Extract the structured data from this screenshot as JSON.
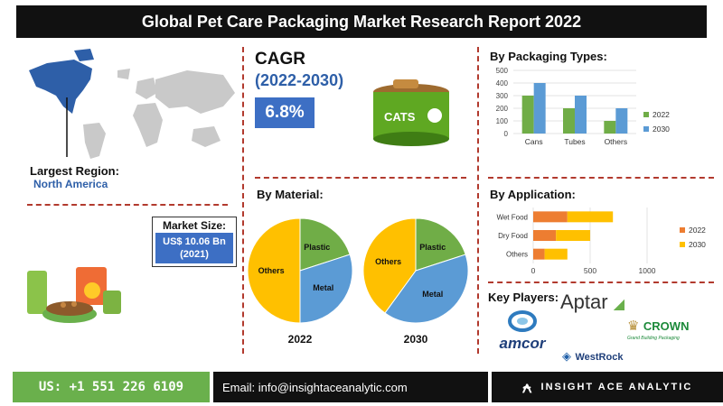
{
  "header": {
    "title": "Global Pet Care Packaging Market Research Report 2022"
  },
  "region": {
    "label": "Largest Region:",
    "value": "North America"
  },
  "cagr": {
    "title": "CAGR",
    "period": "(2022-2030)",
    "value": "6.8%"
  },
  "can_label": "CATS",
  "market_size": {
    "title": "Market Size:",
    "value_line1": "US$ 10.06 Bn",
    "value_line2": "(2021)"
  },
  "material": {
    "title": "By Material:"
  },
  "packaging": {
    "title": "By Packaging Types:"
  },
  "application": {
    "title": "By Application:"
  },
  "players": {
    "title": "Key Players:",
    "names": [
      "Aptar",
      "CROWN",
      "Grand Building Packaging",
      "amcor",
      "WestRock"
    ]
  },
  "footer": {
    "phone": "US: +1 551 226 6109",
    "email": "Email: info@insightaceanalytic.com",
    "brand": "INSIGHT ACE ANALYTIC"
  },
  "colors": {
    "blue": "#5b9bd5",
    "green": "#70ad47",
    "orange": "#ed7d31",
    "yellow": "#ffc000",
    "accent": "#3d6fc4"
  },
  "chart_data": [
    {
      "type": "bar",
      "title": "By Packaging Types:",
      "categories": [
        "Cans",
        "Tubes",
        "Others"
      ],
      "series": [
        {
          "name": "2022",
          "values": [
            300,
            200,
            100
          ]
        },
        {
          "name": "2030",
          "values": [
            400,
            300,
            200
          ]
        }
      ],
      "ylim": [
        0,
        500
      ],
      "yticks": [
        0,
        100,
        200,
        300,
        400,
        500
      ],
      "legend": "right"
    },
    {
      "type": "bar",
      "orientation": "horizontal",
      "stacked": true,
      "title": "By Application:",
      "categories": [
        "Wet Food",
        "Dry Food",
        "Others"
      ],
      "series": [
        {
          "name": "2022",
          "values": [
            300,
            200,
            100
          ]
        },
        {
          "name": "2030",
          "values": [
            400,
            300,
            200
          ]
        }
      ],
      "xlim": [
        0,
        1000
      ],
      "xticks": [
        0,
        500,
        1000
      ],
      "legend": "right"
    },
    {
      "type": "pie",
      "title": "2022",
      "labels": [
        "Plastic",
        "Metal",
        "Others"
      ],
      "values": [
        20,
        30,
        50
      ]
    },
    {
      "type": "pie",
      "title": "2030",
      "labels": [
        "Plastic",
        "Metal",
        "Others"
      ],
      "values": [
        20,
        40,
        40
      ]
    }
  ]
}
